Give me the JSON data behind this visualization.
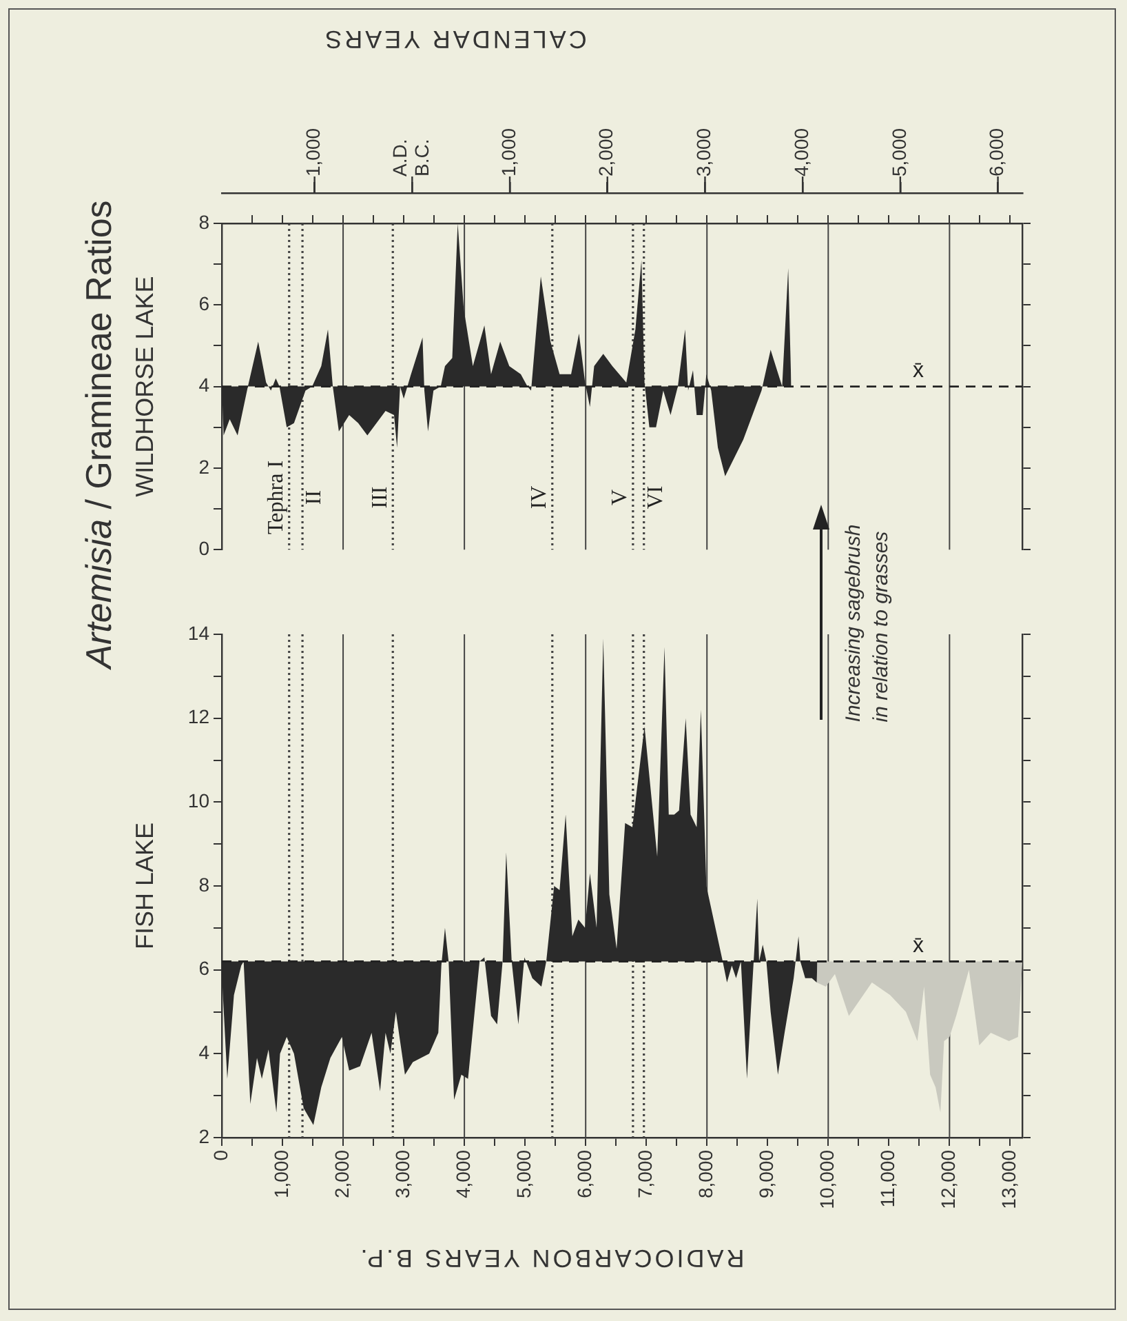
{
  "chart_data": [
    {
      "type": "area",
      "title": "Artemisia / Gramineae Ratios",
      "ylabel": "WILDHORSE LAKE",
      "x2label": "CALENDAR YEARS",
      "color": "#2a2a2a",
      "x": [
        0,
        30,
        130,
        260,
        430,
        600,
        730,
        810,
        890,
        950,
        1070,
        1190,
        1380,
        1490,
        1640,
        1750,
        1830,
        1930,
        2100,
        2250,
        2400,
        2550,
        2700,
        2840,
        2890,
        2940,
        3000,
        3120,
        3310,
        3340,
        3400,
        3490,
        3610,
        3680,
        3800,
        3890,
        3990,
        4140,
        4330,
        4440,
        4590,
        4740,
        4930,
        5040,
        5100,
        5260,
        5420,
        5570,
        5760,
        5890,
        5990,
        6070,
        6140,
        6290,
        6440,
        6670,
        6820,
        6920,
        6970,
        7050,
        7160,
        7280,
        7400,
        7520,
        7640,
        7690,
        7770,
        7830,
        7930,
        7990,
        8070,
        8180,
        8300,
        8600,
        8900,
        9050,
        9240,
        9340,
        9390
      ],
      "values": [
        4.0,
        2.8,
        3.2,
        2.8,
        4.0,
        5.1,
        4.1,
        3.9,
        4.2,
        4.0,
        3.0,
        3.1,
        3.9,
        4.0,
        4.5,
        5.4,
        4.0,
        2.9,
        3.3,
        3.1,
        2.8,
        3.1,
        3.4,
        3.3,
        2.5,
        4.0,
        3.7,
        4.3,
        5.2,
        3.9,
        2.9,
        3.9,
        4.0,
        4.5,
        4.7,
        8.0,
        5.9,
        4.5,
        5.5,
        4.3,
        5.1,
        4.5,
        4.3,
        4.0,
        3.9,
        6.7,
        5.1,
        4.3,
        4.3,
        5.3,
        4.1,
        3.5,
        4.5,
        4.8,
        4.5,
        4.1,
        5.4,
        7.1,
        4.1,
        3.0,
        3.0,
        3.9,
        3.3,
        4.0,
        5.4,
        3.9,
        4.4,
        3.3,
        3.3,
        4.3,
        3.9,
        2.5,
        1.8,
        2.7,
        3.9,
        4.9,
        4.0,
        6.9,
        4.0
      ],
      "xlim": [
        0,
        13200
      ],
      "xticks": [
        500,
        1000,
        1500,
        2000,
        2500,
        3000,
        3500,
        4000,
        4500,
        5000,
        5500,
        6000,
        6500,
        7000,
        7500,
        8000,
        8500,
        9000,
        9500,
        10000,
        10500,
        11000,
        11500,
        12000,
        12500,
        13000
      ],
      "ylim": [
        0,
        8
      ],
      "yticks": [
        0,
        {
          "value": 1,
          "label": null
        },
        2,
        {
          "value": 3,
          "label": null
        },
        4,
        {
          "value": 5,
          "label": null
        },
        6,
        {
          "value": 7,
          "label": null
        },
        8
      ],
      "x2lim": [
        -1950,
        6250
      ],
      "x2ticks": [
        {
          "value": -1000,
          "label": "1,000"
        },
        {
          "value": 0,
          "label": "A.D.\nB.C."
        },
        {
          "value": 1000,
          "label": "1,000"
        },
        {
          "value": 2000,
          "label": "2,000"
        },
        {
          "value": 3000,
          "label": "3,000"
        },
        {
          "value": 4000,
          "label": "4,000"
        },
        {
          "value": 5000,
          "label": "5,000"
        },
        {
          "value": 6000,
          "label": "6,000"
        }
      ],
      "tick_labels": "y",
      "ref_lines": [
        {
          "axis": "x",
          "value": 2000,
          "line_style": "solid"
        },
        {
          "axis": "x",
          "value": 4000,
          "line_style": "solid"
        },
        {
          "axis": "x",
          "value": 6000,
          "line_style": "solid"
        },
        {
          "axis": "x",
          "value": 8000,
          "line_style": "solid"
        },
        {
          "axis": "x",
          "value": 10000,
          "line_style": "solid"
        },
        {
          "axis": "x",
          "value": 12000,
          "line_style": "solid"
        },
        {
          "axis": "x",
          "value": 1110,
          "label": "Tephra I",
          "line_style": "dotted"
        },
        {
          "axis": "x",
          "value": 1330,
          "label": "II",
          "line_style": "dotted"
        },
        {
          "axis": "x",
          "value": 2820,
          "label": "III",
          "line_style": "dotted"
        },
        {
          "axis": "x",
          "value": 5450,
          "label": "IV",
          "line_style": "dotted"
        },
        {
          "axis": "x",
          "value": 6780,
          "label": "V",
          "line_style": "dotted"
        },
        {
          "axis": "x",
          "value": 6960,
          "label": "VI",
          "line_style": "dotted"
        },
        {
          "axis": "y",
          "value": 4,
          "label": "x̄",
          "line_style": "dashed"
        }
      ]
    },
    {
      "type": "area",
      "ylabel": "FISH LAKE",
      "xlabel": "RADIOCARBON YEARS B.P.",
      "series": [
        {
          "color": "#2a2a2a",
          "x": [
            0,
            0,
            90,
            200,
            320,
            360,
            470,
            580,
            660,
            770,
            900,
            960,
            1070,
            1190,
            1350,
            1510,
            1640,
            1790,
            1980,
            2100,
            2280,
            2470,
            2610,
            2700,
            2780,
            2870,
            3020,
            3150,
            3420,
            3570,
            3620,
            3680,
            3740,
            3830,
            3950,
            4060,
            4250,
            4330,
            4440,
            4540,
            4630,
            4690,
            4780,
            4890,
            4990,
            5120,
            5270,
            5350,
            5480,
            5570,
            5670,
            5780,
            5880,
            5990,
            6070,
            6180,
            6290,
            6390,
            6510,
            6650,
            6770,
            6970,
            7180,
            7300,
            7370,
            7460,
            7540,
            7650,
            7730,
            7830,
            7900,
            7990,
            8110,
            8260,
            8330,
            8410,
            8480,
            8560,
            8660,
            8750,
            8830,
            8860,
            8920,
            8980,
            9050,
            9170,
            9280,
            9430,
            9510,
            9540,
            9620,
            9730,
            9810,
            9820
          ],
          "values": [
            6.2,
            5.9,
            3.4,
            5.4,
            6.1,
            6.2,
            2.8,
            3.9,
            3.4,
            4.1,
            2.6,
            4.0,
            4.4,
            4.0,
            2.7,
            2.3,
            3.2,
            3.9,
            4.4,
            3.6,
            3.7,
            4.5,
            3.1,
            4.5,
            4.0,
            5.0,
            3.5,
            3.8,
            4.0,
            4.5,
            6.1,
            7.0,
            6.2,
            2.9,
            3.5,
            3.4,
            6.2,
            6.3,
            4.9,
            4.7,
            6.2,
            8.8,
            6.2,
            4.7,
            6.3,
            5.8,
            5.6,
            6.2,
            8.0,
            7.9,
            9.7,
            6.8,
            7.2,
            7.0,
            8.3,
            7.0,
            13.9,
            7.8,
            6.5,
            9.5,
            9.4,
            11.8,
            8.7,
            13.7,
            9.7,
            9.7,
            9.8,
            12.0,
            9.7,
            9.4,
            12.2,
            8.0,
            7.2,
            6.2,
            5.7,
            6.1,
            5.8,
            6.2,
            3.4,
            5.7,
            7.7,
            6.2,
            6.6,
            6.2,
            5.0,
            3.5,
            4.5,
            5.8,
            6.8,
            6.2,
            5.8,
            5.8,
            5.7,
            6.2
          ]
        },
        {
          "color": "#c9c9bf",
          "x": [
            9800,
            9810,
            9960,
            10110,
            10340,
            10720,
            11020,
            11280,
            11470,
            11580,
            11680,
            11770,
            11850,
            11910,
            12000,
            12110,
            12320,
            12490,
            12680,
            12980,
            13130,
            13200
          ],
          "values": [
            6.2,
            5.7,
            5.6,
            5.9,
            4.9,
            5.7,
            5.4,
            5.0,
            4.3,
            5.6,
            3.5,
            3.2,
            2.6,
            4.3,
            4.4,
            4.9,
            6.0,
            4.2,
            4.5,
            4.3,
            4.4,
            6.2
          ]
        }
      ],
      "xlim": [
        0,
        13200
      ],
      "xticks": [
        0,
        {
          "value": 500,
          "label": null
        },
        {
          "value": 1000,
          "label": "1,000"
        },
        {
          "value": 1500,
          "label": null
        },
        {
          "value": 2000,
          "label": "2,000"
        },
        {
          "value": 2500,
          "label": null
        },
        {
          "value": 3000,
          "label": "3,000"
        },
        {
          "value": 3500,
          "label": null
        },
        {
          "value": 4000,
          "label": "4,000"
        },
        {
          "value": 4500,
          "label": null
        },
        {
          "value": 5000,
          "label": "5,000"
        },
        {
          "value": 5500,
          "label": null
        },
        {
          "value": 6000,
          "label": "6,000"
        },
        {
          "value": 6500,
          "label": null
        },
        {
          "value": 7000,
          "label": "7,000"
        },
        {
          "value": 7500,
          "label": null
        },
        {
          "value": 8000,
          "label": "8,000"
        },
        {
          "value": 8500,
          "label": null
        },
        {
          "value": 9000,
          "label": "9,000"
        },
        {
          "value": 9500,
          "label": null
        },
        {
          "value": 10000,
          "label": "10,000"
        },
        {
          "value": 10500,
          "label": null
        },
        {
          "value": 11000,
          "label": "11,000"
        },
        {
          "value": 11500,
          "label": null
        },
        {
          "value": 12000,
          "label": "12,000"
        },
        {
          "value": 12500,
          "label": null
        },
        {
          "value": 13000,
          "label": "13,000"
        }
      ],
      "ylim": [
        2,
        14
      ],
      "yticks": [
        2,
        {
          "value": 3,
          "label": null
        },
        4,
        {
          "value": 5,
          "label": null
        },
        6,
        {
          "value": 7,
          "label": null
        },
        8,
        {
          "value": 9,
          "label": null
        },
        10,
        {
          "value": 11,
          "label": null
        },
        12,
        {
          "value": 13,
          "label": null
        },
        14
      ],
      "annotations": [
        "Increasing sagebrush\nin relation to grasses"
      ],
      "ref_lines": [
        {
          "axis": "x",
          "value": 2000,
          "line_style": "solid"
        },
        {
          "axis": "x",
          "value": 4000,
          "line_style": "solid"
        },
        {
          "axis": "x",
          "value": 6000,
          "line_style": "solid"
        },
        {
          "axis": "x",
          "value": 8000,
          "line_style": "solid"
        },
        {
          "axis": "x",
          "value": 10000,
          "line_style": "solid"
        },
        {
          "axis": "x",
          "value": 12000,
          "line_style": "solid"
        },
        {
          "axis": "x",
          "value": 1110,
          "line_style": "dotted"
        },
        {
          "axis": "x",
          "value": 1330,
          "line_style": "dotted"
        },
        {
          "axis": "x",
          "value": 2820,
          "line_style": "dotted"
        },
        {
          "axis": "x",
          "value": 5450,
          "line_style": "dotted"
        },
        {
          "axis": "x",
          "value": 6780,
          "line_style": "dotted"
        },
        {
          "axis": "x",
          "value": 6960,
          "line_style": "dotted"
        },
        {
          "axis": "y",
          "value": 6.2,
          "label": "x̄",
          "line_style": "dashed"
        }
      ]
    }
  ]
}
